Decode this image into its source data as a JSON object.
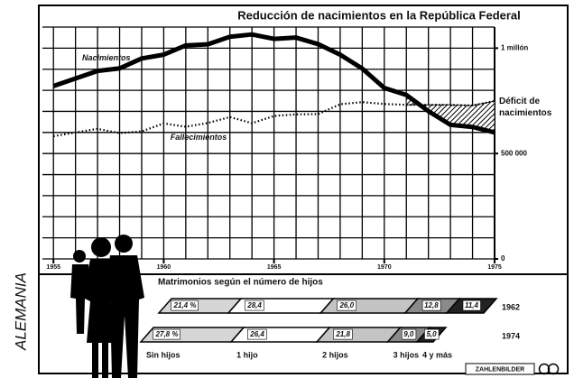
{
  "chart_data": [
    {
      "type": "line",
      "title": "Reducción de nacimientos en la República Federal",
      "annotation": "Déficit de nacimientos",
      "x": [
        1955,
        1956,
        1957,
        1958,
        1959,
        1960,
        1961,
        1962,
        1963,
        1964,
        1965,
        1966,
        1967,
        1968,
        1969,
        1970,
        1971,
        1972,
        1973,
        1974,
        1975
      ],
      "series": [
        {
          "name": "Nacimientos",
          "color": "#000000",
          "style": "solid",
          "values": [
            820000,
            856000,
            892000,
            904000,
            951000,
            969000,
            1013000,
            1018000,
            1054000,
            1065000,
            1044000,
            1050000,
            1019000,
            969000,
            903000,
            811000,
            778000,
            701000,
            636000,
            626000,
            600000
          ]
        },
        {
          "name": "Fallecimientos",
          "color": "#000000",
          "style": "dotted",
          "values": [
            582000,
            600000,
            617000,
            597000,
            605000,
            643000,
            627000,
            645000,
            673000,
            644000,
            678000,
            686000,
            687000,
            734000,
            744000,
            735000,
            731000,
            731000,
            731000,
            728000,
            749000
          ]
        }
      ],
      "xlim": [
        1954.5,
        1975
      ],
      "xticks": [
        1955,
        1960,
        1965,
        1970,
        1975
      ],
      "ylim": [
        0,
        1100000
      ],
      "yticks": [
        0,
        {
          "value": 500000,
          "label": "500 000"
        },
        {
          "value": 1000000,
          "label": "1 millón"
        }
      ],
      "grid": {
        "x_step": 1,
        "y_step": 100000
      }
    },
    {
      "type": "stacked-parallelogram-bar",
      "title": "Matrimonios según el número de hijos",
      "categories": [
        "1962",
        "1974"
      ],
      "xlim": [
        0,
        100
      ],
      "series": [
        {
          "name": "Sin hijos",
          "color": "#d6d6d6",
          "values": [
            21.4,
            27.8
          ],
          "value_labels": [
            "21,4 %",
            "27,8 %"
          ]
        },
        {
          "name": "1 hijo",
          "color": "#ffffff",
          "values": [
            28.4,
            26.4
          ],
          "value_labels": [
            "28,4",
            "26,4"
          ]
        },
        {
          "name": "2 hijos",
          "color": "#c4c4c4",
          "values": [
            26.0,
            21.8
          ],
          "value_labels": [
            "26,0",
            "21,8"
          ]
        },
        {
          "name": "3 hijos",
          "color": "#8a8a8a",
          "values": [
            12.8,
            9.0
          ],
          "value_labels": [
            "12,8",
            "9,0"
          ]
        },
        {
          "name": "4 y más",
          "color": "#222222",
          "values": [
            11.4,
            5.0
          ],
          "value_labels": [
            "11,4",
            "5,0"
          ]
        }
      ]
    }
  ],
  "side_label": "ALEMANIA",
  "logo": "ZAHLENBILDER"
}
